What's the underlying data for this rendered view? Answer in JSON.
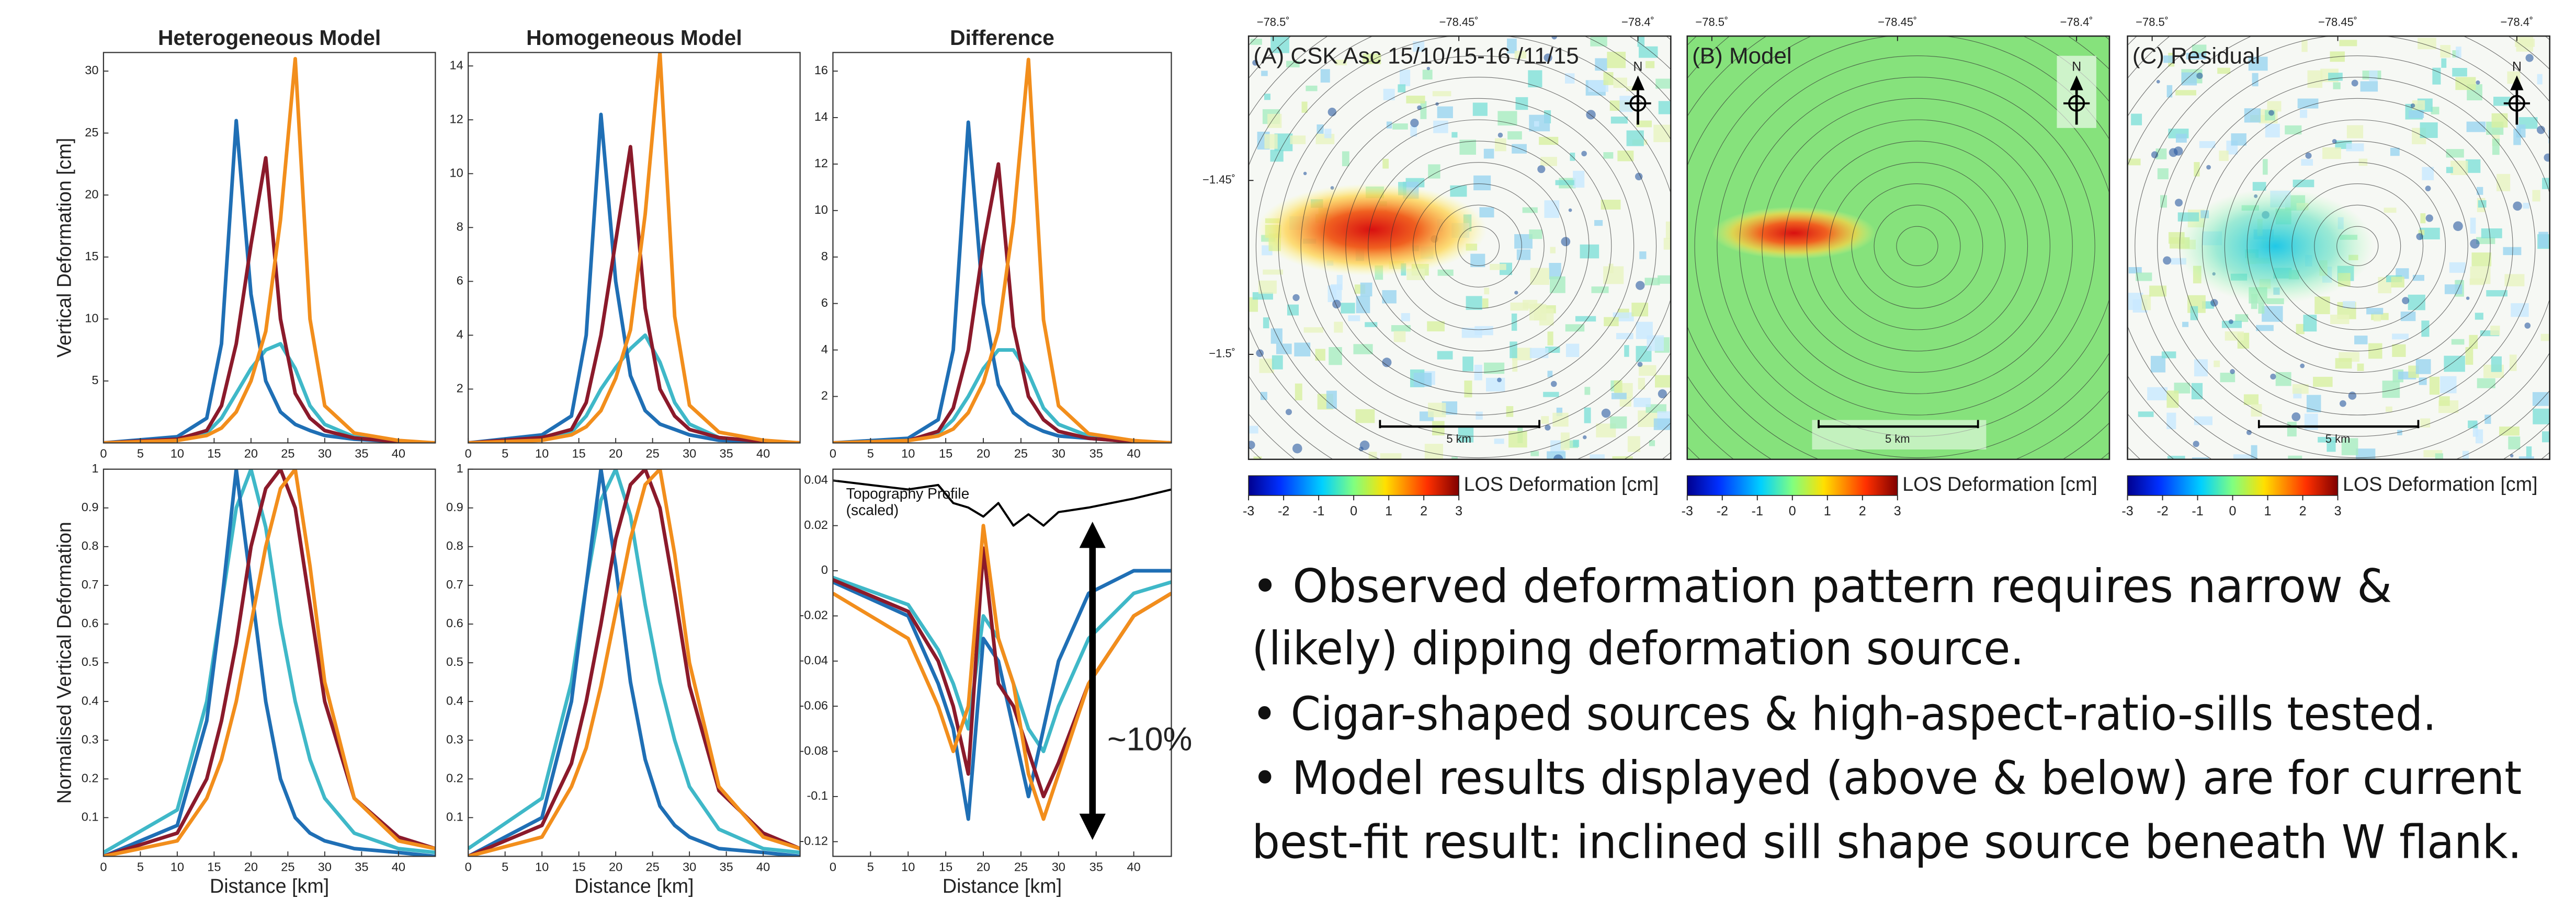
{
  "chart_data": [
    {
      "type": "line",
      "title": "Heterogeneous Model",
      "ylabel": "Vertical Deformation [cm]",
      "x": [
        0,
        10,
        14,
        16,
        18,
        20,
        22,
        24,
        26,
        28,
        30,
        34,
        40,
        45
      ],
      "xlim": [
        0,
        45
      ],
      "xticks": [
        0,
        5,
        10,
        15,
        20,
        25,
        30,
        35,
        40
      ],
      "ylim": [
        0,
        31.5
      ],
      "yticks": [
        5,
        10,
        15,
        20,
        25,
        30
      ],
      "series": [
        {
          "color": "#3fb8c8",
          "values": [
            0,
            0.2,
            0.8,
            2,
            4,
            6,
            7.5,
            8,
            6,
            3,
            1.5,
            0.5,
            0.1,
            0
          ]
        },
        {
          "color": "#1f6fb5",
          "values": [
            0,
            0.5,
            2,
            8,
            26,
            12,
            5,
            2.5,
            1.5,
            1,
            0.6,
            0.3,
            0.1,
            0
          ]
        },
        {
          "color": "#8b1a2b",
          "values": [
            0,
            0.3,
            1,
            3,
            8,
            16,
            23,
            10,
            4,
            2,
            1,
            0.4,
            0.1,
            0
          ]
        },
        {
          "color": "#f28e1c",
          "values": [
            0,
            0.2,
            0.6,
            1.2,
            2.5,
            5,
            9,
            18,
            31,
            10,
            3,
            0.8,
            0.2,
            0
          ]
        }
      ]
    },
    {
      "type": "line",
      "title": "Homogeneous Model",
      "x": [
        0,
        10,
        14,
        16,
        18,
        20,
        22,
        24,
        26,
        28,
        30,
        34,
        40,
        45
      ],
      "xlim": [
        0,
        45
      ],
      "xticks": [
        0,
        5,
        10,
        15,
        20,
        25,
        30,
        35,
        40
      ],
      "ylim": [
        0,
        14.5
      ],
      "yticks": [
        2,
        4,
        6,
        8,
        10,
        12,
        14
      ],
      "series": [
        {
          "color": "#3fb8c8",
          "values": [
            0,
            0.1,
            0.4,
            1,
            2,
            2.8,
            3.5,
            4,
            3,
            1.5,
            0.7,
            0.2,
            0.05,
            0
          ]
        },
        {
          "color": "#1f6fb5",
          "values": [
            0,
            0.3,
            1,
            4,
            12.2,
            6,
            2.5,
            1.2,
            0.7,
            0.5,
            0.3,
            0.1,
            0.05,
            0
          ]
        },
        {
          "color": "#8b1a2b",
          "values": [
            0,
            0.2,
            0.5,
            1.5,
            4,
            7.5,
            11,
            5,
            2,
            1,
            0.5,
            0.2,
            0.05,
            0
          ]
        },
        {
          "color": "#f28e1c",
          "values": [
            0,
            0.1,
            0.3,
            0.6,
            1.2,
            2.4,
            4.2,
            8.5,
            14.5,
            4.7,
            1.4,
            0.4,
            0.1,
            0
          ]
        }
      ]
    },
    {
      "type": "line",
      "title": "Difference",
      "x": [
        0,
        10,
        14,
        16,
        18,
        20,
        22,
        24,
        26,
        28,
        30,
        34,
        40,
        45
      ],
      "xlim": [
        0,
        45
      ],
      "xticks": [
        0,
        5,
        10,
        15,
        20,
        25,
        30,
        35,
        40
      ],
      "ylim": [
        0,
        16.8
      ],
      "yticks": [
        2,
        4,
        6,
        8,
        10,
        12,
        14,
        16
      ],
      "series": [
        {
          "color": "#3fb8c8",
          "values": [
            0,
            0.1,
            0.4,
            1,
            2,
            3.2,
            4,
            4,
            3,
            1.5,
            0.8,
            0.3,
            0.05,
            0
          ]
        },
        {
          "color": "#1f6fb5",
          "values": [
            0,
            0.2,
            1,
            4,
            13.8,
            6,
            2.5,
            1.3,
            0.8,
            0.5,
            0.3,
            0.2,
            0.05,
            0
          ]
        },
        {
          "color": "#8b1a2b",
          "values": [
            0,
            0.1,
            0.5,
            1.5,
            4,
            8.5,
            12,
            5,
            2,
            1,
            0.5,
            0.2,
            0.05,
            0
          ]
        },
        {
          "color": "#f28e1c",
          "values": [
            0,
            0.1,
            0.3,
            0.6,
            1.3,
            2.6,
            4.8,
            9.5,
            16.5,
            5.3,
            1.6,
            0.4,
            0.1,
            0
          ]
        }
      ]
    },
    {
      "type": "line",
      "ylabel": "Normalised Vertical Deformation",
      "xlabel": "Distance [km]",
      "x": [
        0,
        10,
        14,
        16,
        18,
        20,
        22,
        24,
        26,
        28,
        30,
        34,
        40,
        45
      ],
      "xlim": [
        0,
        45
      ],
      "xticks": [
        0,
        5,
        10,
        15,
        20,
        25,
        30,
        35,
        40
      ],
      "ylim": [
        0,
        1
      ],
      "yticks": [
        0.1,
        0.2,
        0.3,
        0.4,
        0.5,
        0.6,
        0.7,
        0.8,
        0.9,
        1
      ],
      "series": [
        {
          "color": "#3fb8c8",
          "values": [
            0.01,
            0.12,
            0.4,
            0.65,
            0.9,
            1,
            0.85,
            0.6,
            0.4,
            0.25,
            0.15,
            0.06,
            0.02,
            0.01
          ]
        },
        {
          "color": "#1f6fb5",
          "values": [
            0,
            0.08,
            0.35,
            0.65,
            1,
            0.7,
            0.4,
            0.2,
            0.1,
            0.06,
            0.04,
            0.02,
            0.01,
            0
          ]
        },
        {
          "color": "#8b1a2b",
          "values": [
            0,
            0.06,
            0.2,
            0.35,
            0.55,
            0.8,
            0.95,
            1,
            0.9,
            0.65,
            0.4,
            0.15,
            0.05,
            0.02
          ]
        },
        {
          "color": "#f28e1c",
          "values": [
            0,
            0.04,
            0.15,
            0.25,
            0.4,
            0.6,
            0.8,
            0.95,
            1,
            0.75,
            0.45,
            0.15,
            0.04,
            0.02
          ]
        }
      ]
    },
    {
      "type": "line",
      "xlabel": "Distance [km]",
      "x": [
        0,
        10,
        14,
        16,
        18,
        20,
        22,
        24,
        26,
        28,
        30,
        34,
        40,
        45
      ],
      "xlim": [
        0,
        45
      ],
      "xticks": [
        0,
        5,
        10,
        15,
        20,
        25,
        30,
        35,
        40
      ],
      "ylim": [
        0,
        1
      ],
      "yticks": [
        0.1,
        0.2,
        0.3,
        0.4,
        0.5,
        0.6,
        0.7,
        0.8,
        0.9,
        1
      ],
      "series": [
        {
          "color": "#3fb8c8",
          "values": [
            0.02,
            0.15,
            0.45,
            0.7,
            0.92,
            1,
            0.88,
            0.65,
            0.45,
            0.3,
            0.18,
            0.07,
            0.02,
            0.01
          ]
        },
        {
          "color": "#1f6fb5",
          "values": [
            0,
            0.1,
            0.4,
            0.7,
            1,
            0.75,
            0.45,
            0.25,
            0.13,
            0.08,
            0.05,
            0.02,
            0.01,
            0
          ]
        },
        {
          "color": "#8b1a2b",
          "values": [
            0,
            0.08,
            0.24,
            0.4,
            0.6,
            0.82,
            0.96,
            1,
            0.9,
            0.68,
            0.44,
            0.17,
            0.06,
            0.02
          ]
        },
        {
          "color": "#f28e1c",
          "values": [
            0,
            0.05,
            0.18,
            0.28,
            0.44,
            0.63,
            0.82,
            0.96,
            1,
            0.78,
            0.5,
            0.18,
            0.05,
            0.02
          ]
        }
      ]
    },
    {
      "type": "line",
      "xlabel": "Distance [km]",
      "annotation": "~10%",
      "x": [
        0,
        10,
        14,
        16,
        18,
        20,
        22,
        24,
        26,
        28,
        30,
        34,
        40,
        45
      ],
      "xlim": [
        0,
        45
      ],
      "xticks": [
        0,
        5,
        10,
        15,
        20,
        25,
        30,
        35,
        40
      ],
      "ylim": [
        -0.1265,
        0.045
      ],
      "yticks": [
        -0.12,
        -0.1,
        -0.08,
        -0.06,
        -0.04,
        -0.02,
        0,
        0.02,
        0.04
      ],
      "series": [
        {
          "name": "Topography Profile (scaled)",
          "color": "#000000",
          "values": [
            0.04,
            0.036,
            0.038,
            0.03,
            0.028,
            0.024,
            0.03,
            0.02,
            0.025,
            0.02,
            0.026,
            0.028,
            0.032,
            0.036
          ]
        },
        {
          "color": "#3fb8c8",
          "values": [
            -0.003,
            -0.015,
            -0.035,
            -0.05,
            -0.07,
            -0.02,
            -0.03,
            -0.05,
            -0.07,
            -0.08,
            -0.06,
            -0.03,
            -0.01,
            -0.005
          ]
        },
        {
          "color": "#1f6fb5",
          "values": [
            -0.005,
            -0.02,
            -0.05,
            -0.07,
            -0.11,
            -0.03,
            -0.04,
            -0.07,
            -0.1,
            -0.07,
            -0.04,
            -0.01,
            0,
            0
          ]
        },
        {
          "color": "#8b1a2b",
          "values": [
            -0.004,
            -0.018,
            -0.04,
            -0.06,
            -0.09,
            0.01,
            -0.05,
            -0.06,
            -0.08,
            -0.1,
            -0.085,
            -0.05,
            -0.02,
            -0.01
          ]
        },
        {
          "color": "#f28e1c",
          "values": [
            -0.01,
            -0.03,
            -0.06,
            -0.08,
            -0.06,
            0.02,
            -0.03,
            -0.05,
            -0.09,
            -0.11,
            -0.09,
            -0.05,
            -0.02,
            -0.01
          ]
        }
      ]
    }
  ],
  "maps": {
    "panels": [
      {
        "title": "(A) CSK Asc 15/10/15-16 /11/15"
      },
      {
        "title": "(B) Model"
      },
      {
        "title": "(C) Residual"
      }
    ],
    "lon_labels": [
      "−78.5˚",
      "−78.45˚",
      "−78.4˚"
    ],
    "lat_labels": [
      "−1.45˚",
      "−1.5˚"
    ],
    "north": "N",
    "scale_bar": "5 km",
    "colorbar": {
      "label": "LOS Deformation [cm]",
      "ticks": [
        -3,
        -2,
        -1,
        0,
        1,
        2,
        3
      ]
    }
  },
  "text_lines": [
    "• Observed deformation pattern requires narrow &",
    "(likely) dipping deformation source.",
    "• Cigar-shaped sources & high-aspect-ratio-sills tested.",
    "• Model results displayed (above & below) are for current",
    "best-fit result: inclined sill shape source beneath W flank."
  ]
}
